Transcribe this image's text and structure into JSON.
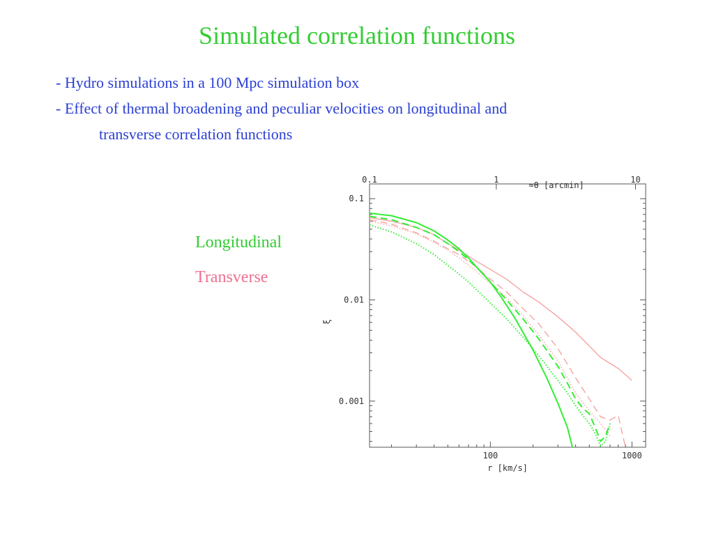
{
  "slide": {
    "title": "Simulated correlation functions",
    "bullets": [
      "- Hydro simulations in a 100 Mpc simulation box",
      "- Effect of thermal broadening and  peculiar velocities on longitudinal and",
      "transverse correlation functions"
    ],
    "legend": {
      "longitudinal": "Longitudinal",
      "transverse": "Transverse"
    }
  },
  "colors": {
    "title": "#33cc33",
    "bullet_text": "#2a3fd4",
    "longitudinal": "#33ee33",
    "transverse": "#f5a3a3"
  },
  "chart_data": {
    "type": "line",
    "xlabel": "r [km/s]",
    "ylabel": "ξ",
    "top_axis_label": "≈θ [arcmin]",
    "x_scale": "log",
    "y_scale": "log",
    "xlim": [
      14,
      1250
    ],
    "ylim": [
      0.00035,
      0.14
    ],
    "x_ticks": [
      100,
      1000
    ],
    "x_tick_labels": [
      "100",
      "1000"
    ],
    "y_ticks": [
      0.1,
      0.01,
      0.001
    ],
    "y_tick_labels": [
      "0.1",
      "0.01",
      "0.001"
    ],
    "top_ticks": [
      0.1,
      1,
      10
    ],
    "top_tick_labels": [
      "0.1",
      "1",
      "10"
    ],
    "top_axis_x_positions": [
      14,
      110,
      1060
    ],
    "series": [
      {
        "group": "transverse",
        "style": "solid",
        "x": [
          14,
          20,
          30,
          40,
          50,
          60,
          70,
          80,
          100,
          130,
          170,
          220,
          300,
          400,
          500,
          600,
          800,
          1000
        ],
        "y": [
          0.065,
          0.06,
          0.052,
          0.044,
          0.036,
          0.031,
          0.027,
          0.024,
          0.02,
          0.016,
          0.012,
          0.0095,
          0.0068,
          0.0048,
          0.0035,
          0.0027,
          0.0021,
          0.0016
        ]
      },
      {
        "group": "transverse",
        "style": "dashed",
        "x": [
          14,
          20,
          30,
          40,
          50,
          60,
          70,
          80,
          100,
          130,
          170,
          220,
          300,
          400,
          500,
          600,
          700,
          800,
          900
        ],
        "y": [
          0.062,
          0.056,
          0.046,
          0.038,
          0.032,
          0.028,
          0.024,
          0.021,
          0.016,
          0.012,
          0.0082,
          0.0058,
          0.0033,
          0.0017,
          0.00105,
          0.0007,
          0.00065,
          0.00072,
          0.00035
        ]
      },
      {
        "group": "transverse",
        "style": "dotted",
        "x": [
          14,
          20,
          30,
          40,
          50,
          60,
          70,
          80,
          100,
          130,
          170,
          220,
          300,
          400,
          500,
          600,
          700
        ],
        "y": [
          0.06,
          0.054,
          0.045,
          0.037,
          0.031,
          0.026,
          0.022,
          0.019,
          0.0145,
          0.0105,
          0.007,
          0.0045,
          0.0025,
          0.0012,
          0.0008,
          0.0006,
          0.00045
        ]
      },
      {
        "group": "longitudinal",
        "style": "solid",
        "x": [
          14,
          20,
          30,
          40,
          50,
          60,
          70,
          80,
          100,
          120,
          150,
          200,
          250,
          300,
          350,
          380
        ],
        "y": [
          0.072,
          0.068,
          0.058,
          0.048,
          0.039,
          0.032,
          0.026,
          0.021,
          0.015,
          0.0105,
          0.0065,
          0.0032,
          0.0017,
          0.00095,
          0.00055,
          0.00035
        ]
      },
      {
        "group": "longitudinal",
        "style": "dashed",
        "x": [
          14,
          20,
          30,
          40,
          50,
          60,
          70,
          80,
          100,
          130,
          170,
          220,
          300,
          350,
          400,
          450,
          500,
          550,
          600,
          650,
          700
        ],
        "y": [
          0.067,
          0.062,
          0.052,
          0.044,
          0.036,
          0.03,
          0.025,
          0.021,
          0.015,
          0.01,
          0.0065,
          0.0041,
          0.0022,
          0.0015,
          0.00105,
          0.00085,
          0.00075,
          0.00055,
          0.0004,
          0.00045,
          0.0006
        ]
      },
      {
        "group": "longitudinal",
        "style": "dotted",
        "x": [
          14,
          20,
          30,
          40,
          50,
          60,
          70,
          80,
          100,
          130,
          170,
          220,
          300,
          350,
          400,
          450,
          500,
          550,
          600,
          650,
          700
        ],
        "y": [
          0.055,
          0.047,
          0.036,
          0.028,
          0.022,
          0.018,
          0.015,
          0.0125,
          0.0093,
          0.0065,
          0.0043,
          0.0028,
          0.0016,
          0.0012,
          0.0009,
          0.00072,
          0.0006,
          0.00048,
          0.00036,
          0.0004,
          0.0006
        ]
      }
    ]
  }
}
